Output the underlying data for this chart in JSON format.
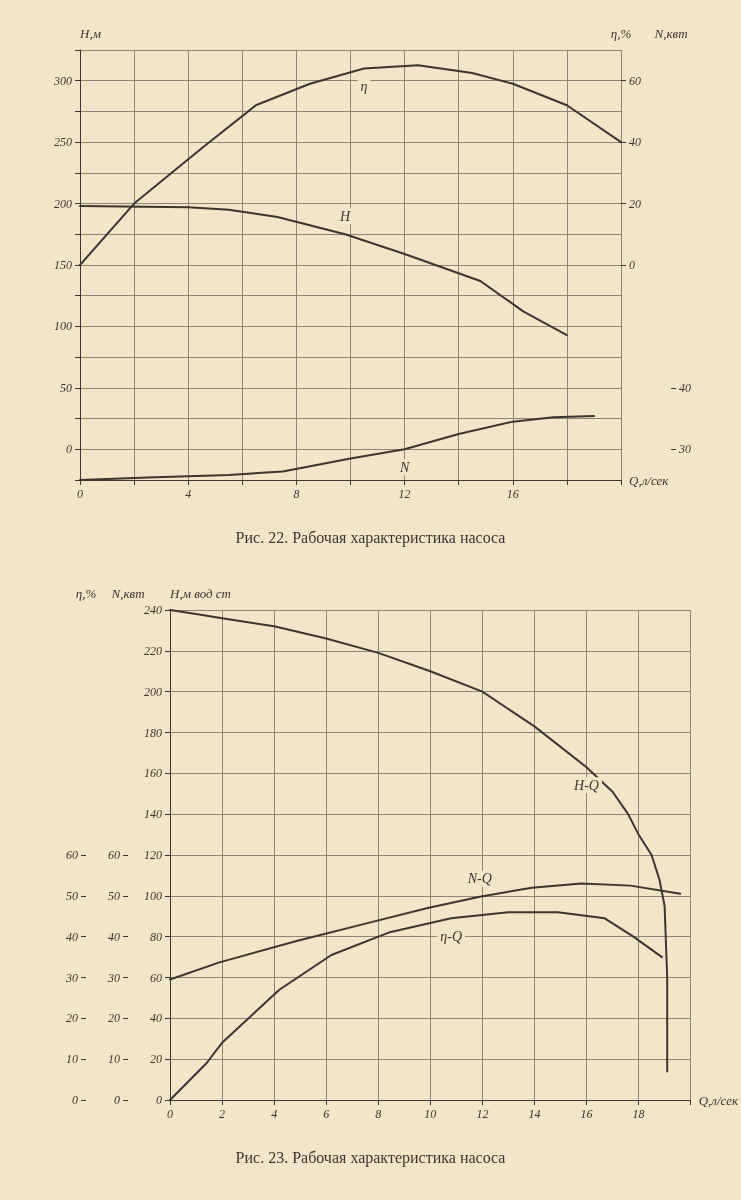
{
  "chart_data": [
    {
      "type": "line",
      "title": "Рис. 22. Рабочая характеристика насоса",
      "xlabel": "Q,л/сек",
      "ylabel": "H,м",
      "y2label": "η,%",
      "y3label": "N,квт",
      "xlim": [
        0,
        20
      ],
      "xticks": [
        0,
        {
          "value": 2,
          "label": null
        },
        4,
        {
          "value": 6,
          "label": null
        },
        8,
        {
          "value": 10,
          "label": null
        },
        12,
        {
          "value": 14,
          "label": null
        },
        16,
        {
          "value": 18,
          "label": null
        },
        {
          "value": 20,
          "label": null
        }
      ],
      "ylim": [
        -25,
        325
      ],
      "yticks": [
        {
          "value": -25,
          "label": null
        },
        0,
        {
          "value": 25,
          "label": null
        },
        50,
        {
          "value": 75,
          "label": null
        },
        100,
        {
          "value": 125,
          "label": null
        },
        150,
        {
          "value": 175,
          "label": null
        },
        200,
        {
          "value": 225,
          "label": null
        },
        250,
        {
          "value": 275,
          "label": null
        },
        300,
        {
          "value": 325,
          "label": null
        }
      ],
      "y2lim": [
        -70,
        70
      ],
      "y2ticks": [
        0,
        20,
        40,
        60
      ],
      "y3lim": [
        25,
        95
      ],
      "y3ticks": [
        30,
        40
      ],
      "grid": true,
      "legend": false,
      "marker": "none",
      "line_style": "solid",
      "series": [
        {
          "name": "η",
          "color": "#3b3630",
          "axis": "y2",
          "x": [
            0,
            2,
            4.5,
            6.5,
            8.5,
            10.5,
            12.5,
            14.5,
            16,
            18,
            20
          ],
          "values": [
            0,
            20,
            38,
            52,
            59,
            64,
            65,
            62.5,
            59,
            52,
            40
          ]
        },
        {
          "name": "H",
          "color": "#3b3630",
          "axis": "y",
          "x": [
            0,
            4,
            5.5,
            7.3,
            9.8,
            12,
            14.8,
            16.4,
            18
          ],
          "values": [
            198,
            197,
            195,
            189,
            175,
            159,
            137,
            112,
            93
          ]
        },
        {
          "name": "N",
          "color": "#3b3630",
          "axis": "y3",
          "x": [
            0,
            2.5,
            5.5,
            7.5,
            10,
            12,
            14,
            16,
            17.5,
            19
          ],
          "values": [
            25,
            25.4,
            25.8,
            26.4,
            28.5,
            30,
            32.5,
            34.5,
            35.2,
            35.4
          ]
        }
      ]
    },
    {
      "type": "line",
      "title": "Рис. 23. Рабочая характеристика насоса",
      "xlabel": "Q,л/сек",
      "ylabel": "H,м вод ст",
      "y2label": "η,%",
      "y3label": "N,квт",
      "xlim": [
        0,
        20
      ],
      "xticks": [
        0,
        2,
        4,
        6,
        8,
        10,
        12,
        14,
        16,
        18,
        {
          "value": 20,
          "label": null
        }
      ],
      "ylim": [
        0,
        240
      ],
      "yticks": [
        0,
        20,
        40,
        60,
        80,
        100,
        120,
        140,
        160,
        180,
        200,
        220,
        240
      ],
      "y2lim": [
        0,
        120
      ],
      "y2ticks": [
        0,
        10,
        20,
        30,
        40,
        50,
        60
      ],
      "y3lim": [
        0,
        120
      ],
      "y3ticks": [
        0,
        10,
        20,
        30,
        40,
        50,
        60
      ],
      "grid": true,
      "legend": false,
      "marker": "none",
      "line_style": "solid",
      "series": [
        {
          "name": "H-Q",
          "color": "#3b3630",
          "axis": "y",
          "x": [
            0,
            1,
            2,
            4,
            6,
            8,
            10,
            12,
            14,
            16,
            17,
            17.6,
            18,
            18.5,
            18.8,
            19,
            19.1,
            19.1
          ],
          "values": [
            240,
            238,
            236,
            232,
            226,
            219,
            210,
            200,
            183,
            163,
            151,
            140,
            130,
            120,
            108,
            95,
            60,
            14
          ]
        },
        {
          "name": "N-Q",
          "color": "#3b3630",
          "axis": "y3",
          "x": [
            0,
            1.9,
            4.9,
            7.7,
            9.9,
            11.9,
            13.9,
            15.8,
            17.7,
            19.6
          ],
          "values": [
            29.5,
            33.7,
            39,
            43.5,
            47,
            49.8,
            52,
            53,
            52.5,
            50.5
          ]
        },
        {
          "name": "η-Q",
          "color": "#3b3630",
          "axis": "y2",
          "x": [
            0,
            1.4,
            2,
            4.2,
            6.2,
            8.4,
            10.8,
            13,
            14.9,
            16.7,
            17.8,
            18.9
          ],
          "values": [
            0,
            9,
            14,
            27,
            35.5,
            41,
            44.5,
            46,
            46,
            44.5,
            40,
            35
          ]
        }
      ]
    }
  ]
}
